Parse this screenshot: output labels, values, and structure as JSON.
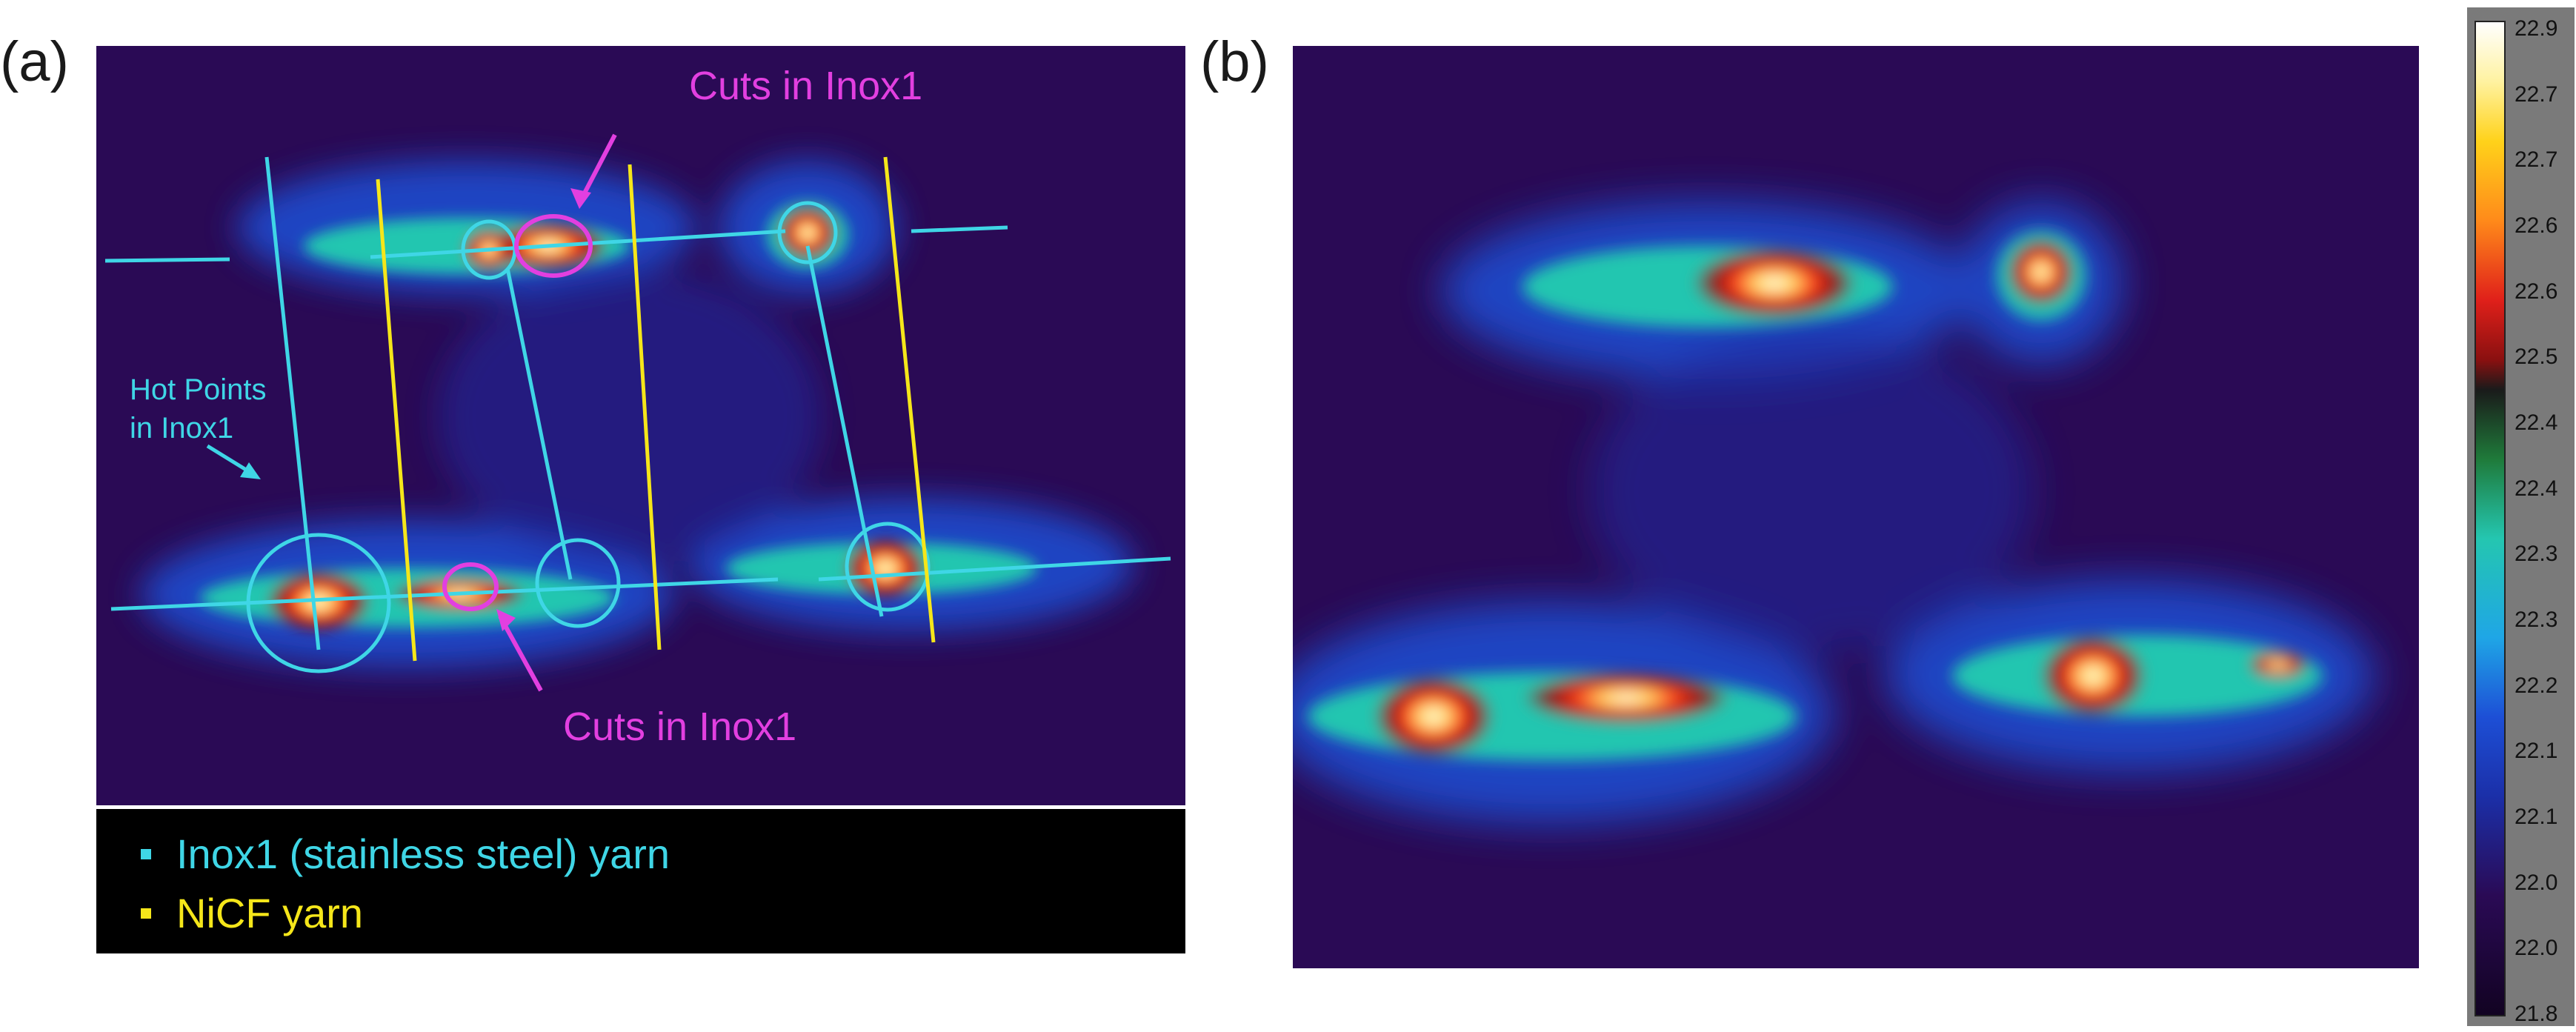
{
  "panels": {
    "a": {
      "label": "(a)"
    },
    "b": {
      "label": "(b)"
    }
  },
  "annotations": {
    "cuts_top": "Cuts in Inox1",
    "cuts_bottom": "Cuts in Inox1",
    "hot_points_line1": "Hot Points",
    "hot_points_line2": "in Inox1"
  },
  "legend": {
    "items": [
      {
        "label": "Inox1 (stainless steel) yarn",
        "color": "#3fd6e6"
      },
      {
        "label": "NiCF yarn",
        "color": "#f5e61a"
      }
    ]
  },
  "colorbar": {
    "ticks": [
      "22.9",
      "22.7",
      "22.7",
      "22.6",
      "22.6",
      "22.5",
      "22.4",
      "22.4",
      "22.3",
      "22.3",
      "22.2",
      "22.1",
      "22.1",
      "22.0",
      "22.0",
      "21.8"
    ]
  },
  "colors": {
    "inox": "#3fd6e6",
    "nicf": "#f5e61a",
    "cuts": "#e23fe0",
    "background": "#2a0a55"
  }
}
